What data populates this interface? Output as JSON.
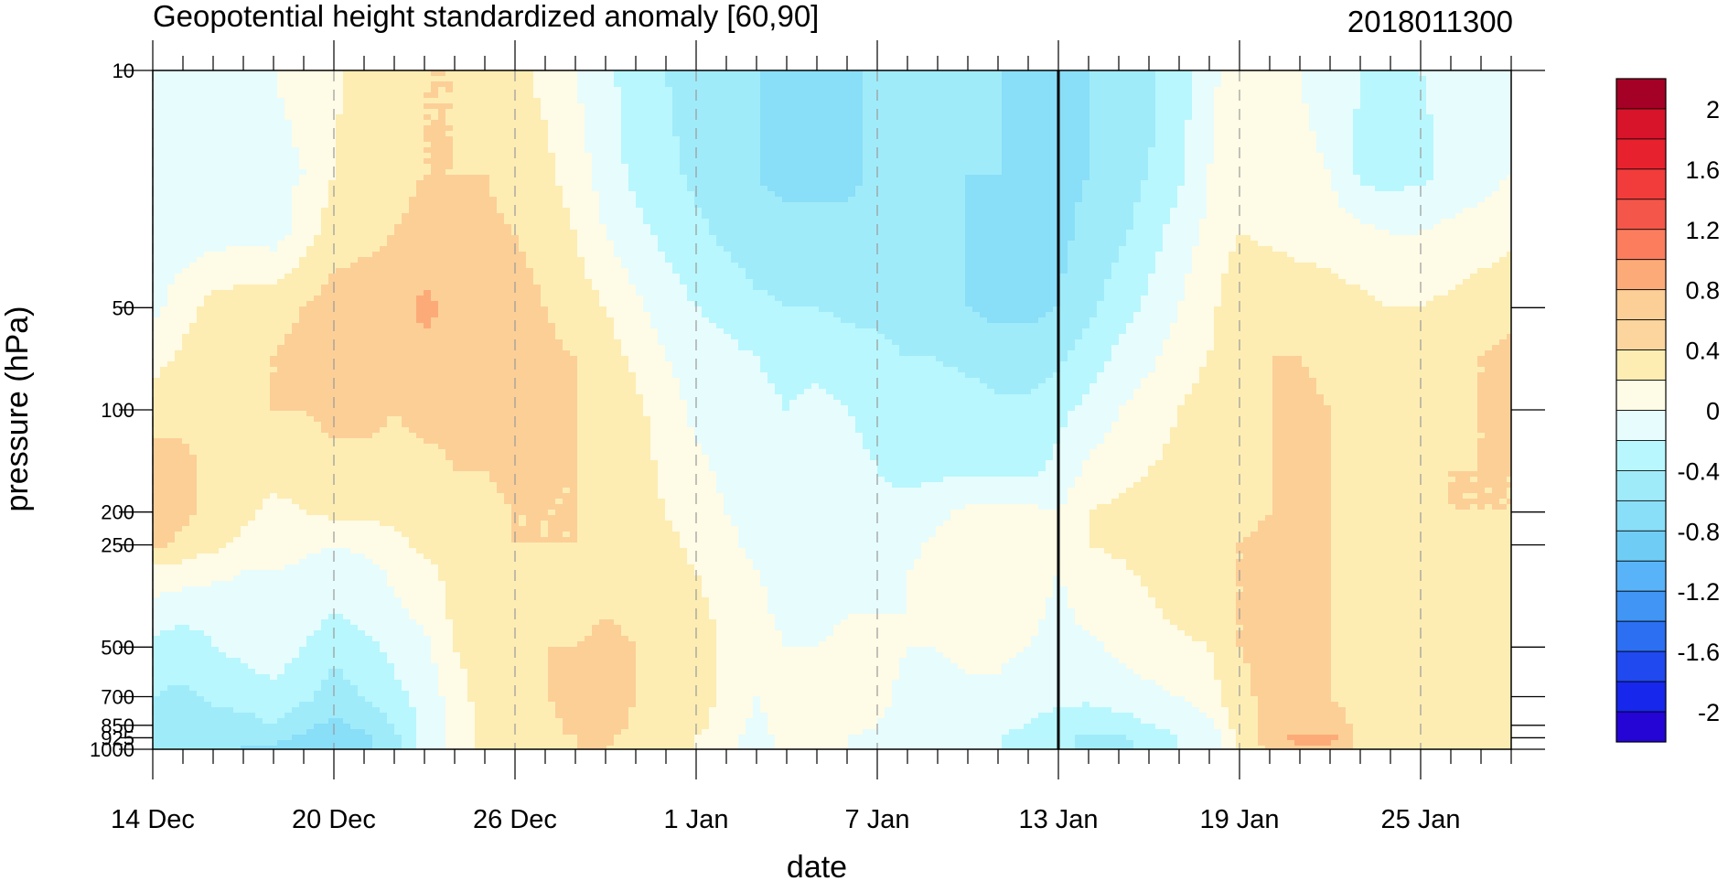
{
  "chart_data": {
    "type": "contour",
    "title": "Geopotential height standardized anomaly [60,90]",
    "right_title": "2018011300",
    "xlabel": "date",
    "ylabel": "pressure (hPa)",
    "x_ticks": [
      "14 Dec",
      "20 Dec",
      "26 Dec",
      "1 Jan",
      "7 Jan",
      "13 Jan",
      "19 Jan",
      "25 Jan"
    ],
    "x_range": [
      "14 Dec 2017",
      "28 Jan 2018"
    ],
    "marked_date": "13 Jan",
    "y_ticks": [
      "10",
      "50",
      "100",
      "200",
      "250",
      "500",
      "700",
      "850",
      "925",
      "1000"
    ],
    "y_scale": "log",
    "y_range": [
      1000,
      10
    ],
    "grid": "dashed vertical lines at labeled dates",
    "legend": "colorbar right",
    "colorbar": {
      "labels": [
        "2",
        "1.6",
        "1.2",
        "0.8",
        "0.4",
        "0",
        "-0.4",
        "-0.8",
        "-1.2",
        "-1.6",
        "-2"
      ],
      "colors": [
        "#a50026",
        "#d7142a",
        "#e8212f",
        "#f23c3c",
        "#f5564a",
        "#fb7d5e",
        "#fcab78",
        "#fccf97",
        "#fcd59e",
        "#fdedb3",
        "#fefbe6",
        "#e7fcfd",
        "#b8f7fd",
        "#a0ebfa",
        "#89def8",
        "#6fcdf5",
        "#59b3f8",
        "#4095f5",
        "#2c6ff2",
        "#2049f0",
        "#1827ec",
        "#2405d6"
      ]
    },
    "contour_levels": [
      -0.4,
      -0.2,
      0,
      0.2,
      0.4,
      0.6,
      0.8
    ],
    "level_colors": [
      "#89def8",
      "#a0ebfa",
      "#b8f7fd",
      "#e7fcfd",
      "#fefbe6",
      "#fdedb3",
      "#fccf97",
      "#fcab78"
    ],
    "times": [
      "14 Dec",
      "15 Dec",
      "16 Dec",
      "17 Dec",
      "18 Dec",
      "19 Dec",
      "20 Dec",
      "21 Dec",
      "22 Dec",
      "23 Dec",
      "24 Dec",
      "25 Dec",
      "26 Dec",
      "27 Dec",
      "28 Dec",
      "29 Dec",
      "30 Dec",
      "31 Dec",
      "1 Jan",
      "2 Jan",
      "3 Jan",
      "4 Jan",
      "5 Jan",
      "6 Jan",
      "7 Jan",
      "8 Jan",
      "9 Jan",
      "10 Jan",
      "11 Jan",
      "12 Jan",
      "13 Jan",
      "14 Jan",
      "15 Jan",
      "16 Jan",
      "17 Jan",
      "18 Jan",
      "19 Jan",
      "20 Jan",
      "21 Jan",
      "22 Jan",
      "23 Jan",
      "24 Jan",
      "25 Jan",
      "26 Jan",
      "27 Jan",
      "28 Jan"
    ],
    "levels_hPa": [
      10,
      20,
      30,
      50,
      70,
      100,
      150,
      200,
      250,
      300,
      400,
      500,
      700,
      850,
      925,
      1000
    ],
    "grid_values": [
      [
        0.05,
        0.05,
        0.1,
        0.15,
        0.3,
        0.55,
        0.65,
        0.7,
        0.65,
        0.35,
        0.1,
        -0.05,
        -0.2,
        -0.3,
        -0.35,
        -0.3
      ],
      [
        0.05,
        0.05,
        0.1,
        0.3,
        0.45,
        0.55,
        0.65,
        0.65,
        0.55,
        0.3,
        0.05,
        -0.1,
        -0.25,
        -0.35,
        -0.35,
        -0.3
      ],
      [
        0.1,
        0.1,
        0.1,
        0.5,
        0.55,
        0.55,
        0.55,
        0.55,
        0.45,
        0.25,
        0.05,
        0.0,
        -0.15,
        -0.3,
        -0.35,
        -0.35
      ],
      [
        0.15,
        0.15,
        0.15,
        0.5,
        0.55,
        0.55,
        0.45,
        0.45,
        0.35,
        0.2,
        0.1,
        0.05,
        -0.1,
        -0.3,
        -0.4,
        -0.4
      ],
      [
        0.2,
        0.15,
        0.1,
        0.55,
        0.6,
        0.6,
        0.45,
        0.35,
        0.3,
        0.2,
        0.15,
        0.1,
        -0.05,
        -0.2,
        -0.35,
        -0.45
      ],
      [
        0.25,
        0.2,
        0.3,
        0.6,
        0.65,
        0.6,
        0.5,
        0.4,
        0.25,
        0.15,
        0.1,
        0.0,
        -0.15,
        -0.35,
        -0.45,
        -0.5
      ],
      [
        0.35,
        0.4,
        0.5,
        0.7,
        0.75,
        0.65,
        0.55,
        0.45,
        0.2,
        0.05,
        0.0,
        -0.15,
        -0.3,
        -0.45,
        -0.5,
        -0.5
      ],
      [
        0.5,
        0.55,
        0.55,
        0.7,
        0.7,
        0.65,
        0.55,
        0.45,
        0.25,
        0.1,
        0.05,
        -0.05,
        -0.2,
        -0.35,
        -0.45,
        -0.45
      ],
      [
        0.55,
        0.55,
        0.6,
        0.7,
        0.7,
        0.6,
        0.55,
        0.45,
        0.35,
        0.25,
        0.15,
        0.05,
        -0.05,
        -0.2,
        -0.25,
        -0.25
      ],
      [
        0.6,
        0.6,
        0.65,
        0.85,
        0.75,
        0.65,
        0.55,
        0.45,
        0.45,
        0.35,
        0.25,
        0.15,
        0.05,
        0.1,
        0.1,
        0.1
      ],
      [
        0.6,
        0.6,
        0.65,
        0.75,
        0.7,
        0.65,
        0.6,
        0.5,
        0.5,
        0.45,
        0.45,
        0.4,
        0.3,
        0.25,
        0.25,
        0.25
      ],
      [
        0.55,
        0.6,
        0.65,
        0.65,
        0.65,
        0.6,
        0.6,
        0.55,
        0.55,
        0.5,
        0.5,
        0.5,
        0.5,
        0.45,
        0.45,
        0.45
      ],
      [
        0.45,
        0.5,
        0.6,
        0.65,
        0.65,
        0.65,
        0.65,
        0.6,
        0.6,
        0.55,
        0.55,
        0.55,
        0.55,
        0.5,
        0.5,
        0.5
      ],
      [
        0.35,
        0.45,
        0.55,
        0.6,
        0.65,
        0.65,
        0.6,
        0.6,
        0.6,
        0.6,
        0.6,
        0.6,
        0.6,
        0.55,
        0.55,
        0.55
      ],
      [
        0.2,
        0.3,
        0.4,
        0.5,
        0.6,
        0.6,
        0.6,
        0.6,
        0.6,
        0.55,
        0.55,
        0.6,
        0.65,
        0.65,
        0.6,
        0.6
      ],
      [
        0.05,
        0.1,
        0.2,
        0.4,
        0.5,
        0.55,
        0.55,
        0.55,
        0.55,
        0.55,
        0.6,
        0.65,
        0.7,
        0.7,
        0.65,
        0.6
      ],
      [
        -0.1,
        -0.05,
        0.05,
        0.25,
        0.35,
        0.45,
        0.5,
        0.5,
        0.5,
        0.5,
        0.55,
        0.6,
        0.6,
        0.55,
        0.5,
        0.45
      ],
      [
        -0.2,
        -0.15,
        -0.05,
        0.1,
        0.2,
        0.3,
        0.35,
        0.4,
        0.45,
        0.5,
        0.5,
        0.55,
        0.55,
        0.5,
        0.45,
        0.45
      ],
      [
        -0.3,
        -0.25,
        -0.15,
        0.0,
        0.1,
        0.15,
        0.25,
        0.3,
        0.35,
        0.4,
        0.45,
        0.5,
        0.5,
        0.45,
        0.4,
        0.4
      ],
      [
        -0.35,
        -0.35,
        -0.25,
        -0.05,
        0.05,
        0.1,
        0.15,
        0.2,
        0.25,
        0.3,
        0.35,
        0.35,
        0.35,
        0.3,
        0.3,
        0.3
      ],
      [
        -0.4,
        -0.4,
        -0.35,
        -0.15,
        0.0,
        0.05,
        0.1,
        0.15,
        0.15,
        0.2,
        0.25,
        0.3,
        0.2,
        0.15,
        0.1,
        0.1
      ],
      [
        -0.45,
        -0.45,
        -0.35,
        -0.2,
        -0.05,
        0.0,
        0.05,
        0.1,
        0.1,
        0.15,
        0.15,
        0.2,
        0.25,
        0.3,
        0.3,
        0.3
      ],
      [
        -0.45,
        -0.45,
        -0.35,
        -0.2,
        -0.05,
        0.05,
        0.05,
        0.1,
        0.15,
        0.15,
        0.15,
        0.2,
        0.25,
        0.3,
        0.3,
        0.3
      ],
      [
        -0.45,
        -0.45,
        -0.35,
        -0.25,
        -0.1,
        0.0,
        0.05,
        0.1,
        0.15,
        0.15,
        0.2,
        0.25,
        0.3,
        0.25,
        0.2,
        0.2
      ],
      [
        -0.35,
        -0.35,
        -0.35,
        -0.25,
        -0.15,
        -0.05,
        0.0,
        0.05,
        0.1,
        0.15,
        0.2,
        0.25,
        0.25,
        0.2,
        0.15,
        0.0
      ],
      [
        -0.3,
        -0.35,
        -0.35,
        -0.3,
        -0.2,
        -0.05,
        -0.05,
        0.05,
        0.15,
        0.2,
        0.2,
        0.2,
        0.15,
        0.1,
        0.05,
        0.0
      ],
      [
        -0.3,
        -0.35,
        -0.4,
        -0.35,
        -0.2,
        -0.1,
        -0.05,
        0.15,
        0.25,
        0.25,
        0.25,
        0.2,
        0.15,
        0.05,
        0.05,
        0.0
      ],
      [
        -0.35,
        -0.4,
        -0.4,
        -0.4,
        -0.25,
        -0.1,
        -0.05,
        0.25,
        0.3,
        0.3,
        0.3,
        0.25,
        0.15,
        0.1,
        0.05,
        0.05
      ],
      [
        -0.4,
        -0.4,
        -0.45,
        -0.45,
        -0.3,
        -0.15,
        -0.05,
        0.25,
        0.3,
        0.3,
        0.3,
        0.25,
        0.15,
        0.05,
        0.0,
        0.0
      ],
      [
        -0.45,
        -0.45,
        -0.45,
        -0.45,
        -0.3,
        -0.15,
        -0.05,
        0.25,
        0.3,
        0.3,
        0.25,
        0.2,
        0.1,
        0.0,
        -0.05,
        -0.05
      ],
      [
        -0.45,
        -0.45,
        -0.45,
        -0.4,
        -0.25,
        -0.05,
        0.05,
        0.2,
        0.25,
        0.2,
        0.15,
        0.15,
        0.05,
        -0.1,
        -0.15,
        -0.15
      ],
      [
        -0.4,
        -0.4,
        -0.35,
        -0.25,
        -0.1,
        0.05,
        0.25,
        0.4,
        0.4,
        0.3,
        0.25,
        0.15,
        0.05,
        -0.15,
        -0.25,
        -0.25
      ],
      [
        -0.35,
        -0.3,
        -0.25,
        -0.1,
        0.05,
        0.2,
        0.3,
        0.45,
        0.45,
        0.35,
        0.3,
        0.25,
        0.1,
        -0.1,
        -0.25,
        -0.3
      ],
      [
        -0.25,
        -0.2,
        -0.1,
        0.05,
        0.15,
        0.3,
        0.4,
        0.5,
        0.5,
        0.45,
        0.35,
        0.3,
        0.15,
        0.0,
        -0.1,
        -0.1
      ],
      [
        -0.1,
        -0.05,
        0.1,
        0.2,
        0.3,
        0.4,
        0.45,
        0.55,
        0.55,
        0.5,
        0.45,
        0.35,
        0.2,
        0.05,
        0.0,
        0.0
      ],
      [
        0.15,
        0.2,
        0.25,
        0.35,
        0.4,
        0.5,
        0.5,
        0.55,
        0.55,
        0.55,
        0.5,
        0.4,
        0.3,
        0.15,
        0.05,
        0.05
      ],
      [
        0.3,
        0.35,
        0.4,
        0.55,
        0.55,
        0.55,
        0.55,
        0.55,
        0.6,
        0.6,
        0.6,
        0.6,
        0.55,
        0.5,
        0.45,
        0.45
      ],
      [
        0.3,
        0.3,
        0.35,
        0.6,
        0.6,
        0.6,
        0.6,
        0.6,
        0.65,
        0.65,
        0.65,
        0.65,
        0.65,
        0.7,
        0.7,
        0.65
      ],
      [
        0.2,
        0.25,
        0.3,
        0.55,
        0.6,
        0.65,
        0.65,
        0.65,
        0.65,
        0.65,
        0.65,
        0.65,
        0.65,
        0.75,
        0.85,
        0.8
      ],
      [
        0.1,
        0.2,
        0.3,
        0.5,
        0.55,
        0.6,
        0.6,
        0.6,
        0.6,
        0.6,
        0.6,
        0.6,
        0.6,
        0.7,
        0.85,
        0.75
      ],
      [
        0.0,
        -0.05,
        0.25,
        0.45,
        0.55,
        0.55,
        0.55,
        0.55,
        0.55,
        0.55,
        0.55,
        0.55,
        0.55,
        0.55,
        0.55,
        0.55
      ],
      [
        -0.05,
        -0.1,
        0.2,
        0.4,
        0.55,
        0.55,
        0.55,
        0.55,
        0.5,
        0.5,
        0.5,
        0.5,
        0.55,
        0.55,
        0.55,
        0.55
      ],
      [
        0.0,
        -0.05,
        0.2,
        0.4,
        0.55,
        0.55,
        0.55,
        0.55,
        0.45,
        0.45,
        0.45,
        0.45,
        0.5,
        0.5,
        0.5,
        0.5
      ],
      [
        0.05,
        0.05,
        0.25,
        0.45,
        0.55,
        0.55,
        0.6,
        0.6,
        0.5,
        0.45,
        0.45,
        0.45,
        0.5,
        0.5,
        0.5,
        0.5
      ],
      [
        0.1,
        0.1,
        0.3,
        0.5,
        0.6,
        0.6,
        0.6,
        0.6,
        0.55,
        0.5,
        0.45,
        0.45,
        0.5,
        0.5,
        0.5,
        0.5
      ],
      [
        0.15,
        0.2,
        0.35,
        0.55,
        0.65,
        0.65,
        0.6,
        0.6,
        0.6,
        0.55,
        0.5,
        0.45,
        0.5,
        0.5,
        0.5,
        0.5
      ]
    ]
  }
}
